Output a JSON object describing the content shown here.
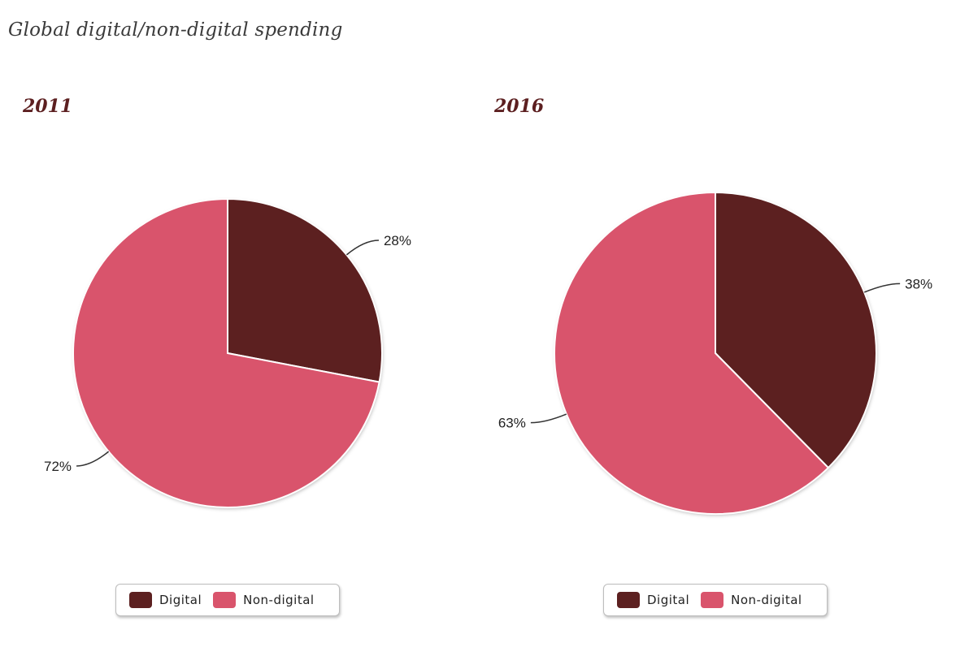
{
  "title": "Global digital/non-digital spending",
  "colors": {
    "digital": "#5c2020",
    "non_digital": "#d9546c"
  },
  "chart_data": [
    {
      "type": "pie",
      "title": "2011",
      "slices": [
        {
          "label": "Digital",
          "value": 28,
          "display": "28%"
        },
        {
          "label": "Non-digital",
          "value": 72,
          "display": "72%"
        }
      ],
      "legend": [
        "Digital",
        "Non-digital"
      ],
      "legend_position": "bottom"
    },
    {
      "type": "pie",
      "title": "2016",
      "slices": [
        {
          "label": "Digital",
          "value": 38,
          "display": "38%"
        },
        {
          "label": "Non-digital",
          "value": 63,
          "display": "63%"
        }
      ],
      "legend": [
        "Digital",
        "Non-digital"
      ],
      "legend_position": "bottom"
    }
  ]
}
